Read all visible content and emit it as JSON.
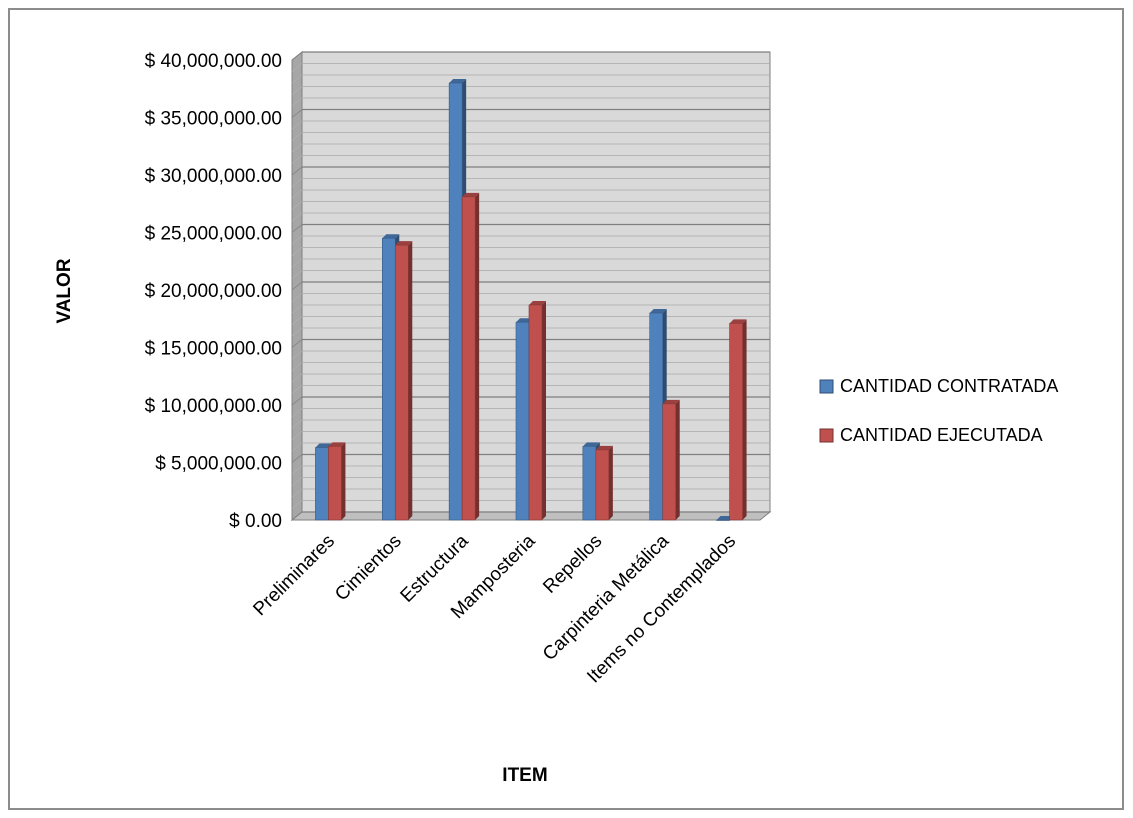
{
  "chart_data": {
    "type": "bar",
    "title": "",
    "xlabel": "ITEM",
    "ylabel": "VALOR",
    "ylim": [
      0,
      40000000
    ],
    "ytick_step": 5000000,
    "ytick_labels": [
      "$ 0.00",
      "$ 5,000,000.00",
      "$ 10,000,000.00",
      "$ 15,000,000.00",
      "$ 20,000,000.00",
      "$ 25,000,000.00",
      "$ 30,000,000.00",
      "$ 35,000,000.00",
      "$ 40,000,000.00"
    ],
    "categories": [
      "Preliminares",
      "Cimientos",
      "Estructura",
      "Mamposteria",
      "Repellos",
      "Carpinteria Metálica",
      "Items no Contemplados"
    ],
    "series": [
      {
        "name": "CANTIDAD CONTRATADA",
        "color": "#4F81BD",
        "values": [
          6300000,
          24500000,
          38000000,
          17200000,
          6400000,
          18000000,
          0
        ]
      },
      {
        "name": "CANTIDAD EJECUTADA",
        "color": "#C0504D",
        "values": [
          6400000,
          23900000,
          28100000,
          18700000,
          6100000,
          10100000,
          17100000
        ]
      }
    ],
    "grid": true,
    "legend_position": "right",
    "style": "3d-column"
  }
}
